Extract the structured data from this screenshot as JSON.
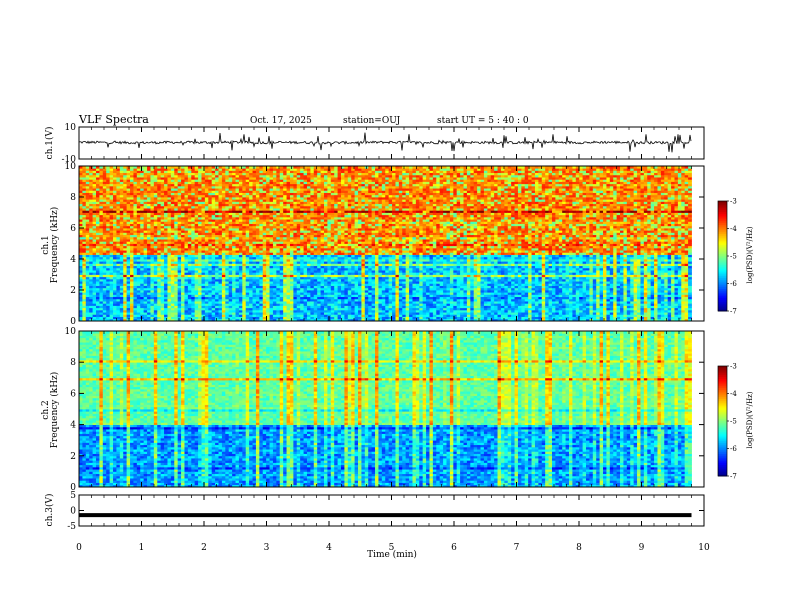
{
  "header": {
    "title": "VLF Spectra",
    "date": "Oct. 17, 2025",
    "station": "station=OUJ",
    "start": "start  UT =   5 : 40 : 0"
  },
  "chart_data": [
    {
      "type": "line",
      "name": "ch1-waveform",
      "ylabel": "ch.1(V)",
      "ylim": [
        -10,
        10
      ],
      "ytick_labels": [
        "10",
        "-10"
      ],
      "x": [
        0,
        0.5,
        1,
        1.5,
        2,
        2.5,
        3,
        3.5,
        4,
        4.5,
        5,
        5.5,
        6,
        6.5,
        7,
        7.5,
        8,
        8.5,
        9,
        9.5,
        9.8
      ],
      "values": [
        0.5,
        0.3,
        0.2,
        0.4,
        0.3,
        0.5,
        0.2,
        0.4,
        0.1,
        0.3,
        0.5,
        0.2,
        0.4,
        0.3,
        0.2,
        0.4,
        0.3,
        0.5,
        0.2,
        0.3,
        0.4
      ],
      "xlim": [
        0,
        10
      ]
    },
    {
      "type": "heatmap",
      "name": "ch1-spectrogram",
      "ylabel": "ch.1\nFrequency (kHz)",
      "ylim": [
        0,
        10
      ],
      "xlim": [
        0,
        10
      ],
      "ytick_labels": [
        "0",
        "2",
        "4",
        "6",
        "8",
        "10"
      ],
      "colorbar": {
        "label": "log(PSD)(V²/Hz)",
        "range": [
          -7,
          -3
        ],
        "tick_labels": [
          "-3",
          "-4",
          "-5",
          "-6",
          "-7"
        ]
      }
    },
    {
      "type": "heatmap",
      "name": "ch2-spectrogram",
      "ylabel": "ch.2\nFrequency (kHz)",
      "ylim": [
        0,
        10
      ],
      "xlim": [
        0,
        10
      ],
      "ytick_labels": [
        "0",
        "2",
        "4",
        "6",
        "8",
        "10"
      ],
      "colorbar": {
        "label": "log(PSD)(V²/Hz)",
        "range": [
          -7,
          -3
        ],
        "tick_labels": [
          "-3",
          "-4",
          "-5",
          "-6",
          "-7"
        ]
      }
    },
    {
      "type": "line",
      "name": "ch3-waveform",
      "ylabel": "ch.3(V)",
      "ylim": [
        -5,
        5
      ],
      "ytick_labels": [
        "5",
        "0",
        "-5"
      ],
      "x": [
        0,
        9.8
      ],
      "values": [
        -1.5,
        -1.5
      ],
      "xlim": [
        0,
        10
      ],
      "xlabel": "Time  (min)",
      "xtick_labels": [
        "0",
        "1",
        "2",
        "3",
        "4",
        "5",
        "6",
        "7",
        "8",
        "9",
        "10"
      ]
    }
  ],
  "colors": {
    "spectrum_high": "#ff2a1a",
    "spectrum_mid": "#33ee33",
    "spectrum_low": "#0000a0"
  }
}
